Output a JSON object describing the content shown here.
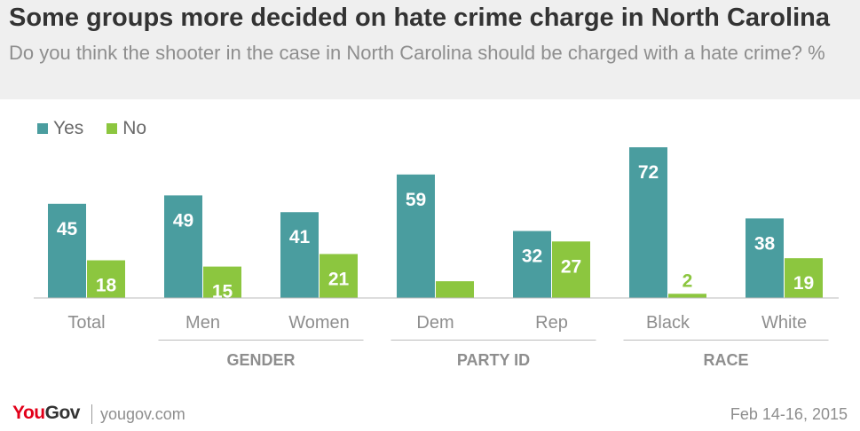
{
  "header": {
    "title": "Some groups more decided on hate crime charge in North Carolina",
    "subtitle": "Do you think the shooter in the case in North Carolina should be charged with a hate crime? %"
  },
  "colors": {
    "yes": "#4a9d9f",
    "no": "#8cc63f",
    "axis": "#bbbbbb",
    "category_label": "#8e8e8e",
    "group_label": "#8e8e8e"
  },
  "chart_data": {
    "type": "bar",
    "title": "Some groups more decided on hate crime charge in North Carolina",
    "subtitle": "Do you think the shooter in the case in North Carolina should be charged with a hate crime? %",
    "categories": [
      "Total",
      "Men",
      "Women",
      "Dem",
      "Rep",
      "Black",
      "White"
    ],
    "series": [
      {
        "name": "Yes",
        "values": [
          45,
          49,
          41,
          59,
          32,
          72,
          38
        ]
      },
      {
        "name": "No",
        "values": [
          18,
          15,
          21,
          8,
          27,
          2,
          19
        ]
      }
    ],
    "groups": [
      {
        "label": "GENDER",
        "categories": [
          "Men",
          "Women"
        ]
      },
      {
        "label": "PARTY ID",
        "categories": [
          "Dem",
          "Rep"
        ]
      },
      {
        "label": "RACE",
        "categories": [
          "Black",
          "White"
        ]
      }
    ],
    "ylim": [
      0,
      80
    ],
    "grid": false,
    "legend": "top-left",
    "data_labels": true
  },
  "footer": {
    "logo_you": "You",
    "logo_gov": "Gov",
    "url": "yougov.com",
    "date": "Feb 14-16, 2015"
  }
}
